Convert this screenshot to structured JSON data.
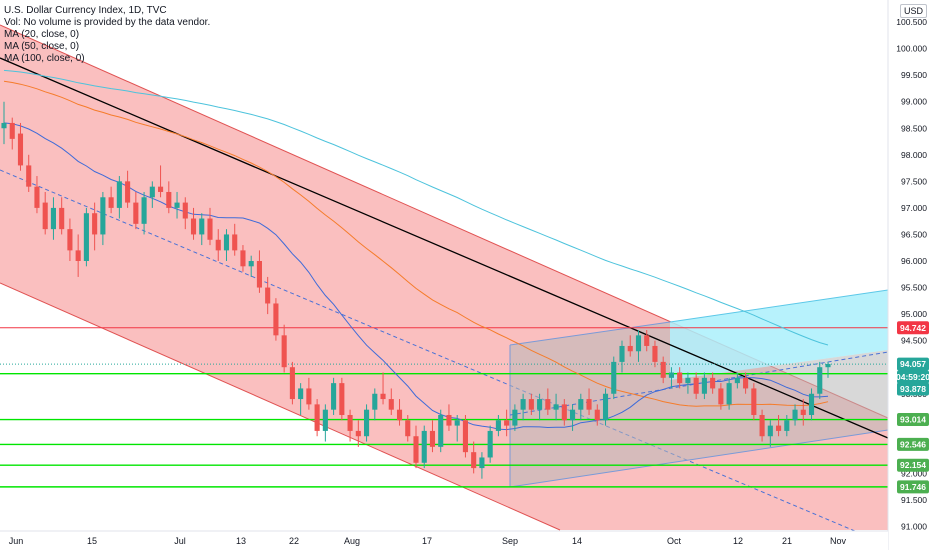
{
  "legend": {
    "title": "U.S. Dollar Currency Index, 1D, TVC",
    "vol": "Vol: No volume is provided by the data vendor.",
    "ma20": "MA (20, close, 0)",
    "ma50": "MA (50, close, 0)",
    "ma100": "MA (100, close, 0)"
  },
  "currency": "USD",
  "chart_data": {
    "type": "candlestick",
    "y_ticks": [
      "91.000",
      "91.500",
      "92.000",
      "92.500",
      "93.000",
      "93.500",
      "94.000",
      "94.500",
      "95.000",
      "95.500",
      "96.000",
      "96.500",
      "97.000",
      "97.500",
      "98.000",
      "98.500",
      "99.000",
      "99.500",
      "100.000",
      "100.500"
    ],
    "y_range": [
      91.0,
      100.5
    ],
    "x_ticks": [
      "Jun",
      "15",
      "Jul",
      "13",
      "22",
      "Aug",
      "17",
      "Sep",
      "14",
      "Oct",
      "12",
      "21",
      "Nov"
    ],
    "price_badges": [
      {
        "label": "94.742",
        "color": "#f23645",
        "value": 94.742
      },
      {
        "label": "94.057",
        "color": "#26a69a",
        "value": 94.057
      },
      {
        "label": "04:59:20",
        "color": "#26a69a",
        "value": 93.82
      },
      {
        "label": "93.878",
        "color": "#26a69a",
        "value": 93.878
      },
      {
        "label": "93.014",
        "color": "#4caf50",
        "value": 93.014
      },
      {
        "label": "92.546",
        "color": "#4caf50",
        "value": 92.546
      },
      {
        "label": "92.154",
        "color": "#4caf50",
        "value": 92.154
      },
      {
        "label": "91.746",
        "color": "#4caf50",
        "value": 91.746
      }
    ],
    "horizontal_levels": [
      {
        "value": 94.742,
        "color": "#f23645"
      },
      {
        "value": 93.878,
        "color": "#00e600"
      },
      {
        "value": 93.014,
        "color": "#00e600"
      },
      {
        "value": 92.546,
        "color": "#00e600"
      },
      {
        "value": 92.154,
        "color": "#00e600"
      },
      {
        "value": 91.746,
        "color": "#00e600"
      }
    ],
    "colors": {
      "up": "#26a69a",
      "down": "#ef5350",
      "ma20": "#3f6bd8",
      "ma50": "#f57c2b",
      "ma100": "#4dc3dc",
      "trend": "#000000"
    },
    "candles": [
      {
        "o": 98.5,
        "h": 99.0,
        "l": 98.2,
        "c": 98.6
      },
      {
        "o": 98.6,
        "h": 98.7,
        "l": 98.1,
        "c": 98.3
      },
      {
        "o": 98.4,
        "h": 98.6,
        "l": 97.7,
        "c": 97.8
      },
      {
        "o": 97.8,
        "h": 98.0,
        "l": 97.3,
        "c": 97.4
      },
      {
        "o": 97.4,
        "h": 97.6,
        "l": 96.9,
        "c": 97.0
      },
      {
        "o": 97.1,
        "h": 97.3,
        "l": 96.5,
        "c": 96.6
      },
      {
        "o": 96.6,
        "h": 97.2,
        "l": 96.4,
        "c": 97.0
      },
      {
        "o": 97.0,
        "h": 97.2,
        "l": 96.5,
        "c": 96.6
      },
      {
        "o": 96.6,
        "h": 96.8,
        "l": 96.0,
        "c": 96.2
      },
      {
        "o": 96.2,
        "h": 96.5,
        "l": 95.7,
        "c": 96.0
      },
      {
        "o": 96.0,
        "h": 97.0,
        "l": 95.9,
        "c": 96.9
      },
      {
        "o": 96.9,
        "h": 97.1,
        "l": 96.2,
        "c": 96.5
      },
      {
        "o": 96.5,
        "h": 97.3,
        "l": 96.3,
        "c": 97.2
      },
      {
        "o": 97.2,
        "h": 97.4,
        "l": 96.9,
        "c": 97.0
      },
      {
        "o": 97.0,
        "h": 97.6,
        "l": 96.8,
        "c": 97.5
      },
      {
        "o": 97.5,
        "h": 97.7,
        "l": 97.0,
        "c": 97.1
      },
      {
        "o": 97.1,
        "h": 97.3,
        "l": 96.6,
        "c": 96.7
      },
      {
        "o": 96.7,
        "h": 97.3,
        "l": 96.5,
        "c": 97.2
      },
      {
        "o": 97.2,
        "h": 97.5,
        "l": 97.0,
        "c": 97.4
      },
      {
        "o": 97.4,
        "h": 97.8,
        "l": 97.2,
        "c": 97.3
      },
      {
        "o": 97.3,
        "h": 97.5,
        "l": 96.9,
        "c": 97.0
      },
      {
        "o": 97.0,
        "h": 97.3,
        "l": 96.8,
        "c": 97.1
      },
      {
        "o": 97.1,
        "h": 97.2,
        "l": 96.6,
        "c": 96.8
      },
      {
        "o": 96.8,
        "h": 97.0,
        "l": 96.4,
        "c": 96.5
      },
      {
        "o": 96.5,
        "h": 96.9,
        "l": 96.3,
        "c": 96.8
      },
      {
        "o": 96.8,
        "h": 97.0,
        "l": 96.3,
        "c": 96.4
      },
      {
        "o": 96.4,
        "h": 96.6,
        "l": 96.0,
        "c": 96.2
      },
      {
        "o": 96.2,
        "h": 96.6,
        "l": 96.0,
        "c": 96.5
      },
      {
        "o": 96.5,
        "h": 96.7,
        "l": 96.1,
        "c": 96.2
      },
      {
        "o": 96.2,
        "h": 96.3,
        "l": 95.8,
        "c": 95.9
      },
      {
        "o": 95.9,
        "h": 96.1,
        "l": 95.7,
        "c": 96.0
      },
      {
        "o": 96.0,
        "h": 96.2,
        "l": 95.4,
        "c": 95.5
      },
      {
        "o": 95.5,
        "h": 95.7,
        "l": 95.0,
        "c": 95.2
      },
      {
        "o": 95.2,
        "h": 95.3,
        "l": 94.5,
        "c": 94.6
      },
      {
        "o": 94.6,
        "h": 94.8,
        "l": 93.9,
        "c": 94.0
      },
      {
        "o": 94.0,
        "h": 94.1,
        "l": 93.3,
        "c": 93.4
      },
      {
        "o": 93.4,
        "h": 93.7,
        "l": 93.1,
        "c": 93.6
      },
      {
        "o": 93.6,
        "h": 93.8,
        "l": 93.2,
        "c": 93.3
      },
      {
        "o": 93.3,
        "h": 93.4,
        "l": 92.7,
        "c": 92.8
      },
      {
        "o": 92.8,
        "h": 93.3,
        "l": 92.6,
        "c": 93.2
      },
      {
        "o": 93.2,
        "h": 93.8,
        "l": 93.1,
        "c": 93.7
      },
      {
        "o": 93.7,
        "h": 93.8,
        "l": 93.0,
        "c": 93.1
      },
      {
        "o": 93.1,
        "h": 93.2,
        "l": 92.6,
        "c": 92.8
      },
      {
        "o": 92.8,
        "h": 93.0,
        "l": 92.5,
        "c": 92.7
      },
      {
        "o": 92.7,
        "h": 93.3,
        "l": 92.6,
        "c": 93.2
      },
      {
        "o": 93.2,
        "h": 93.6,
        "l": 93.0,
        "c": 93.5
      },
      {
        "o": 93.5,
        "h": 93.9,
        "l": 93.3,
        "c": 93.4
      },
      {
        "o": 93.4,
        "h": 93.6,
        "l": 93.1,
        "c": 93.2
      },
      {
        "o": 93.2,
        "h": 93.4,
        "l": 92.9,
        "c": 93.0
      },
      {
        "o": 93.0,
        "h": 93.1,
        "l": 92.6,
        "c": 92.7
      },
      {
        "o": 92.7,
        "h": 92.9,
        "l": 92.1,
        "c": 92.2
      },
      {
        "o": 92.2,
        "h": 92.9,
        "l": 92.1,
        "c": 92.8
      },
      {
        "o": 92.8,
        "h": 93.0,
        "l": 92.4,
        "c": 92.5
      },
      {
        "o": 92.5,
        "h": 93.2,
        "l": 92.4,
        "c": 93.1
      },
      {
        "o": 93.1,
        "h": 93.3,
        "l": 92.8,
        "c": 92.9
      },
      {
        "o": 92.9,
        "h": 93.1,
        "l": 92.6,
        "c": 93.0
      },
      {
        "o": 93.0,
        "h": 93.1,
        "l": 92.3,
        "c": 92.4
      },
      {
        "o": 92.4,
        "h": 92.6,
        "l": 92.0,
        "c": 92.1
      },
      {
        "o": 92.1,
        "h": 92.4,
        "l": 91.9,
        "c": 92.3
      },
      {
        "o": 92.3,
        "h": 92.9,
        "l": 92.2,
        "c": 92.8
      },
      {
        "o": 92.8,
        "h": 93.1,
        "l": 92.7,
        "c": 93.0
      },
      {
        "o": 93.0,
        "h": 93.2,
        "l": 92.7,
        "c": 92.9
      },
      {
        "o": 92.9,
        "h": 93.3,
        "l": 92.8,
        "c": 93.2
      },
      {
        "o": 93.2,
        "h": 93.5,
        "l": 93.0,
        "c": 93.4
      },
      {
        "o": 93.4,
        "h": 93.5,
        "l": 93.1,
        "c": 93.2
      },
      {
        "o": 93.2,
        "h": 93.5,
        "l": 93.0,
        "c": 93.4
      },
      {
        "o": 93.4,
        "h": 93.6,
        "l": 93.1,
        "c": 93.2
      },
      {
        "o": 93.2,
        "h": 93.5,
        "l": 93.0,
        "c": 93.3
      },
      {
        "o": 93.3,
        "h": 93.4,
        "l": 92.9,
        "c": 93.0
      },
      {
        "o": 93.0,
        "h": 93.3,
        "l": 92.8,
        "c": 93.2
      },
      {
        "o": 93.2,
        "h": 93.5,
        "l": 93.0,
        "c": 93.4
      },
      {
        "o": 93.4,
        "h": 93.6,
        "l": 93.1,
        "c": 93.2
      },
      {
        "o": 93.2,
        "h": 93.3,
        "l": 92.9,
        "c": 93.0
      },
      {
        "o": 93.0,
        "h": 93.6,
        "l": 92.9,
        "c": 93.5
      },
      {
        "o": 93.5,
        "h": 94.2,
        "l": 93.4,
        "c": 94.1
      },
      {
        "o": 94.1,
        "h": 94.5,
        "l": 93.9,
        "c": 94.4
      },
      {
        "o": 94.4,
        "h": 94.6,
        "l": 94.2,
        "c": 94.3
      },
      {
        "o": 94.3,
        "h": 94.7,
        "l": 94.1,
        "c": 94.6
      },
      {
        "o": 94.6,
        "h": 94.7,
        "l": 94.3,
        "c": 94.4
      },
      {
        "o": 94.4,
        "h": 94.5,
        "l": 94.0,
        "c": 94.1
      },
      {
        "o": 94.1,
        "h": 94.2,
        "l": 93.7,
        "c": 93.8
      },
      {
        "o": 93.8,
        "h": 94.0,
        "l": 93.6,
        "c": 93.9
      },
      {
        "o": 93.9,
        "h": 94.0,
        "l": 93.6,
        "c": 93.7
      },
      {
        "o": 93.7,
        "h": 93.9,
        "l": 93.5,
        "c": 93.8
      },
      {
        "o": 93.8,
        "h": 93.9,
        "l": 93.4,
        "c": 93.5
      },
      {
        "o": 93.5,
        "h": 93.9,
        "l": 93.4,
        "c": 93.8
      },
      {
        "o": 93.8,
        "h": 93.9,
        "l": 93.5,
        "c": 93.6
      },
      {
        "o": 93.6,
        "h": 93.7,
        "l": 93.2,
        "c": 93.3
      },
      {
        "o": 93.3,
        "h": 93.8,
        "l": 93.2,
        "c": 93.7
      },
      {
        "o": 93.7,
        "h": 93.9,
        "l": 93.6,
        "c": 93.8
      },
      {
        "o": 93.8,
        "h": 93.9,
        "l": 93.5,
        "c": 93.6
      },
      {
        "o": 93.6,
        "h": 93.7,
        "l": 93.0,
        "c": 93.1
      },
      {
        "o": 93.1,
        "h": 93.2,
        "l": 92.6,
        "c": 92.7
      },
      {
        "o": 92.7,
        "h": 93.0,
        "l": 92.5,
        "c": 92.9
      },
      {
        "o": 92.9,
        "h": 93.1,
        "l": 92.7,
        "c": 92.8
      },
      {
        "o": 92.8,
        "h": 93.1,
        "l": 92.7,
        "c": 93.0
      },
      {
        "o": 93.0,
        "h": 93.3,
        "l": 92.9,
        "c": 93.2
      },
      {
        "o": 93.2,
        "h": 93.4,
        "l": 92.9,
        "c": 93.1
      },
      {
        "o": 93.1,
        "h": 93.6,
        "l": 93.0,
        "c": 93.5
      },
      {
        "o": 93.5,
        "h": 94.1,
        "l": 93.4,
        "c": 94.0
      },
      {
        "o": 94.0,
        "h": 94.1,
        "l": 93.8,
        "c": 94.06
      }
    ]
  }
}
